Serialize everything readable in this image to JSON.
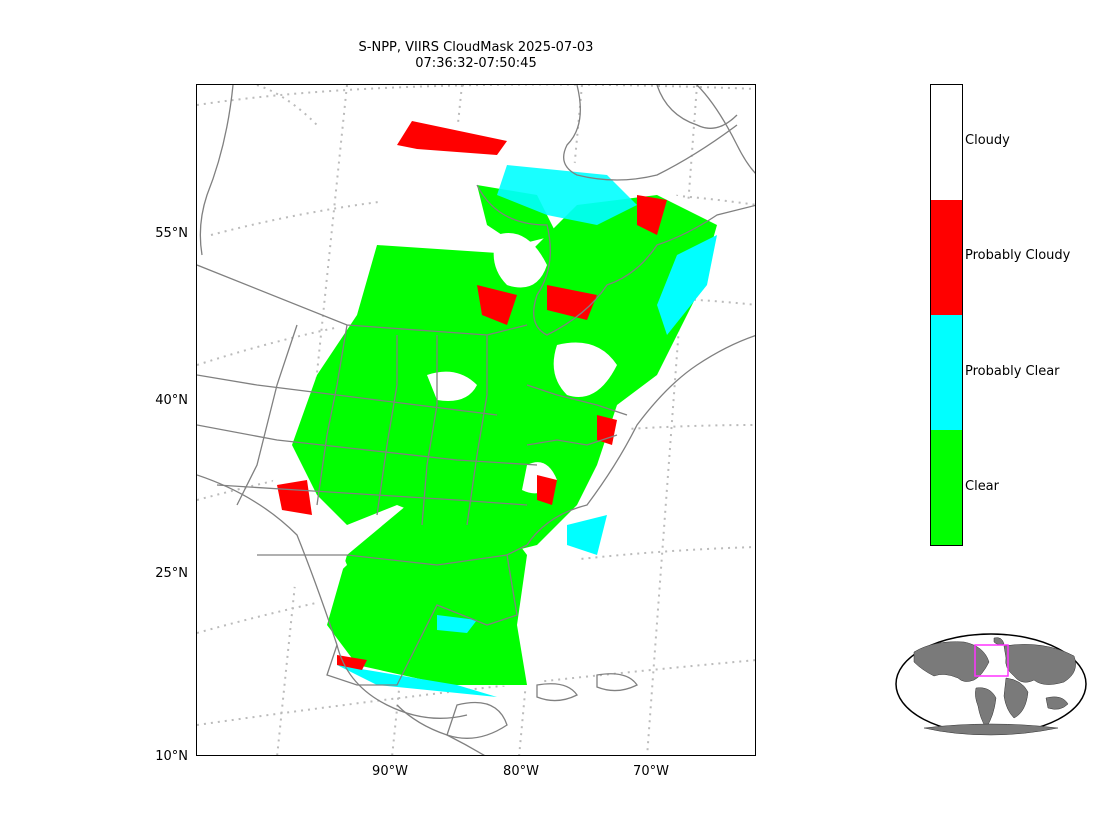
{
  "title_line1": "S-NPP, VIIRS CloudMask 2025-07-03",
  "title_line2": "07:36:32-07:50:45",
  "lat_labels": [
    "55°N",
    "40°N",
    "25°N",
    "10°N"
  ],
  "lon_labels": [
    "90°W",
    "80°W",
    "70°W"
  ],
  "colorbar": {
    "categories": [
      {
        "label": "Cloudy",
        "color": "#ffffff"
      },
      {
        "label": "Probably Cloudy",
        "color": "#ff0000"
      },
      {
        "label": "Probably Clear",
        "color": "#00ffff"
      },
      {
        "label": "Clear",
        "color": "#00ff00"
      }
    ]
  },
  "colors": {
    "coastline": "#808080",
    "graticule": "#bbbbbb",
    "inset_land": "#7a7a7a",
    "inset_box": "#ff33ff"
  }
}
